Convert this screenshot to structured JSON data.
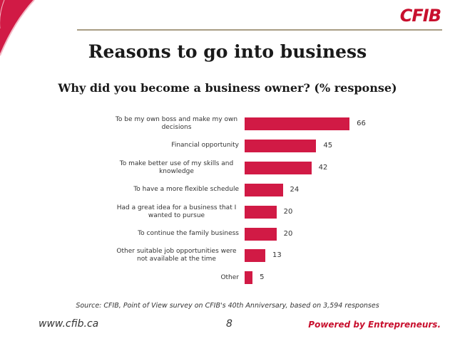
{
  "logo": "CFIB",
  "chart_data": {
    "type": "bar",
    "orientation": "horizontal",
    "title": "Reasons to go into business",
    "subtitle": "Why did you become a business owner? (% response)",
    "categories": [
      "To be my own boss and make my own decisions",
      "Financial opportunity",
      "To make better use of my skills and knowledge",
      "To have a more flexible schedule",
      "Had a great idea for a business that I wanted to pursue",
      "To continue the family business",
      "Other suitable job opportunities were not available at the time",
      "Other"
    ],
    "values": [
      66,
      45,
      42,
      24,
      20,
      20,
      13,
      5
    ],
    "color": "#d11a45",
    "source": "Source:  CFIB, Point of View survey on CFIB's 40th Anniversary, based on 3,594 responses"
  },
  "footer": {
    "url": "www.cfib.ca",
    "page": "8",
    "tagline": "Powered by Entrepreneurs."
  }
}
